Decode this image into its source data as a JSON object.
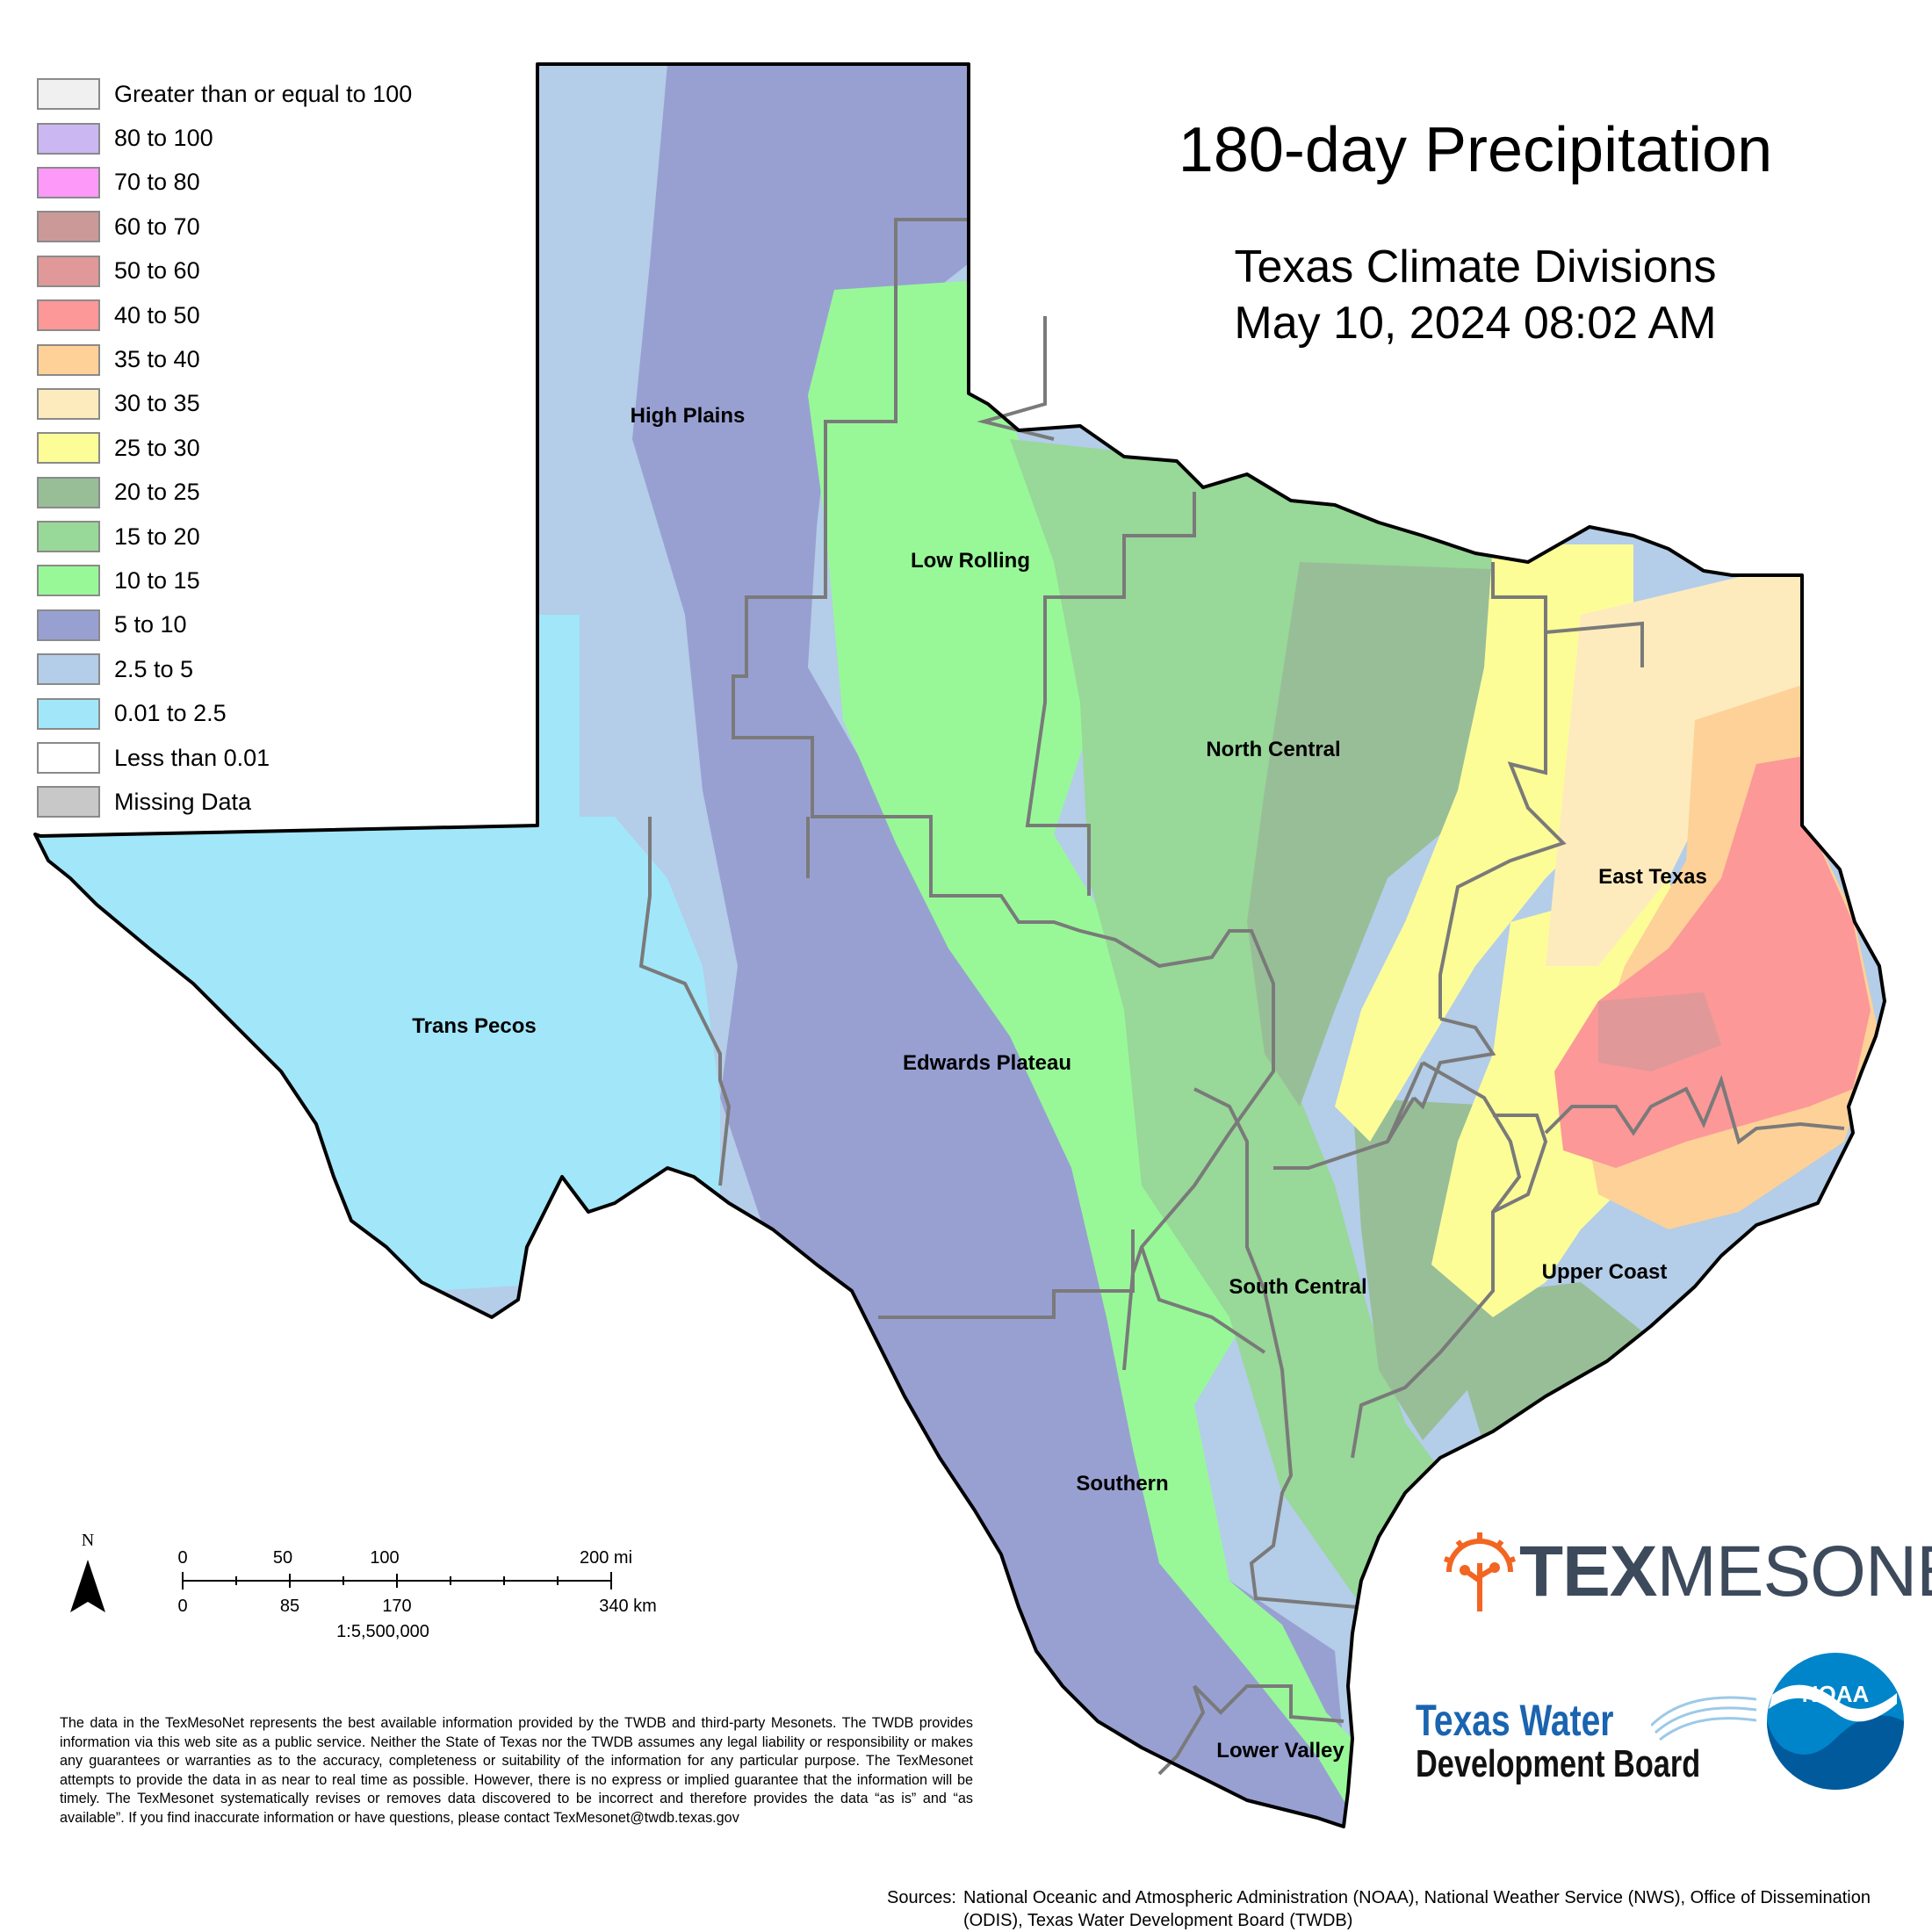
{
  "title": "180-day Precipitation",
  "subtitle_line1": "Texas Climate Divisions",
  "subtitle_line2": "May 10, 2024 08:02 AM",
  "legend": [
    {
      "label": "Greater than or equal to 100",
      "color": "#f0f0f0"
    },
    {
      "label": "80 to 100",
      "color": "#cbb8f2"
    },
    {
      "label": "70 to 80",
      "color": "#fc99f9"
    },
    {
      "label": "60 to 70",
      "color": "#cc9999"
    },
    {
      "label": "50 to 60",
      "color": "#e09898"
    },
    {
      "label": "40 to 50",
      "color": "#fc9898"
    },
    {
      "label": "35 to 40",
      "color": "#fdd198"
    },
    {
      "label": "30 to 35",
      "color": "#fdebbe"
    },
    {
      "label": "25 to 30",
      "color": "#fdfd98"
    },
    {
      "label": "20 to 25",
      "color": "#98be98"
    },
    {
      "label": "15 to 20",
      "color": "#98d898"
    },
    {
      "label": "10 to 15",
      "color": "#98f898"
    },
    {
      "label": "5 to 10",
      "color": "#98a0d2"
    },
    {
      "label": "2.5 to 5",
      "color": "#b4cde8"
    },
    {
      "label": "0.01 to 2.5",
      "color": "#a2e6fa"
    },
    {
      "label": "Less than 0.01",
      "color": "#ffffff"
    },
    {
      "label": "Missing Data",
      "color": "#c8c8c8"
    }
  ],
  "divisions": {
    "high_plains": "High Plains",
    "low_rolling": "Low Rolling",
    "north_central": "North Central",
    "east_texas": "East Texas",
    "trans_pecos": "Trans Pecos",
    "edwards_plateau": "Edwards Plateau",
    "south_central": "South Central",
    "upper_coast": "Upper Coast",
    "southern": "Southern",
    "lower_valley": "Lower Valley"
  },
  "scale_bar": {
    "north": "N",
    "miles": [
      "0",
      "50",
      "100",
      "200 mi"
    ],
    "km": [
      "0",
      "85",
      "170",
      "340 km"
    ],
    "ratio": "1:5,500,000"
  },
  "disclaimer": "The data in the TexMesoNet represents the best available information provided by the TWDB and third-party Mesonets. The TWDB provides information via this web site as a public service. Neither the State of Texas nor the TWDB assumes any legal liability or responsibility or makes any guarantees or warranties as to the accuracy, completeness or suitability of the information for any particular purpose. The TexMesonet attempts to provide the data in as near to real time as possible. However, there is no express or implied guarantee that the information will be timely. The TexMesonet systematically revises or removes data discovered to be incorrect and therefore provides the data “as is” and “as available”. If you find inaccurate information or have questions, please contact TexMesonet@twdb.texas.gov",
  "sources_label": "Sources:",
  "sources_text": "National Oceanic and Atmospheric Administration (NOAA), National Weather Service (NWS), Office of Dissemination (ODIS), Texas Water Development Board (TWDB)",
  "logos": {
    "texmesonet_bold": "TEX",
    "texmesonet_light": "MESONET",
    "twdb_line1": "Texas Water",
    "twdb_line2": "Development Board",
    "noaa": "NOAA"
  }
}
